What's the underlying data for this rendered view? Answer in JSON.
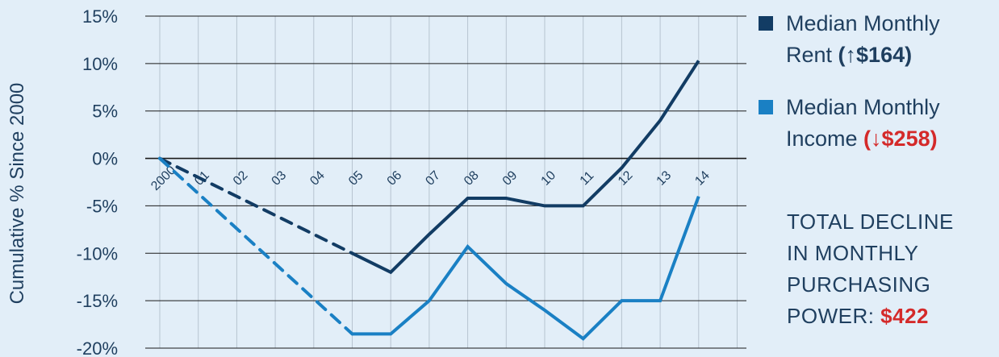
{
  "colors": {
    "background": "#e2eef8",
    "rent": "#123c64",
    "income": "#1a80c4",
    "highlight": "#d42a2a",
    "text": "#1f3f5f",
    "grid": "#1a1a1a"
  },
  "chart_data": {
    "type": "line",
    "xlabel": "",
    "ylabel": "Cumulative % Since 2000",
    "categories": [
      "2000",
      "01",
      "02",
      "03",
      "04",
      "05",
      "06",
      "07",
      "08",
      "09",
      "10",
      "11",
      "12",
      "13",
      "14"
    ],
    "ylim": [
      -20,
      15
    ],
    "yticks": [
      15,
      10,
      5,
      0,
      -5,
      -10,
      -15,
      -20
    ],
    "ytick_labels": [
      "15%",
      "10%",
      "5%",
      "0%",
      "-5%",
      "-10%",
      "-15%",
      "-20%"
    ],
    "grid": true,
    "legend_position": "right",
    "series": [
      {
        "name": "Median Monthly Rent",
        "color": "#123c64",
        "points": [
          [
            0,
            0
          ],
          [
            5,
            -10
          ],
          [
            6,
            -12
          ],
          [
            7,
            -8
          ],
          [
            8,
            -4.2
          ],
          [
            9,
            -4.2
          ],
          [
            10,
            -5
          ],
          [
            11,
            -5
          ],
          [
            12,
            -1
          ],
          [
            13,
            4
          ],
          [
            14,
            10.3
          ]
        ],
        "dashed_until_index": 5
      },
      {
        "name": "Median Monthly Income",
        "color": "#1a80c4",
        "points": [
          [
            0,
            0
          ],
          [
            5,
            -18.5
          ],
          [
            6,
            -18.5
          ],
          [
            7,
            -15
          ],
          [
            8,
            -9.3
          ],
          [
            9,
            -13.2
          ],
          [
            10,
            -16
          ],
          [
            11,
            -19
          ],
          [
            12,
            -15
          ],
          [
            13,
            -15
          ],
          [
            14,
            -4
          ]
        ],
        "dashed_until_index": 5
      }
    ]
  },
  "legend": {
    "rent": {
      "line1": "Median Monthly",
      "line2": "Rent ",
      "change": "(↑$164)"
    },
    "income": {
      "line1": "Median Monthly",
      "line2": "Income ",
      "change": "(↓$258)"
    }
  },
  "decline": {
    "text": "TOTAL DECLINE\nIN MONTHLY\nPURCHASING\nPOWER: ",
    "amount": "$422"
  }
}
